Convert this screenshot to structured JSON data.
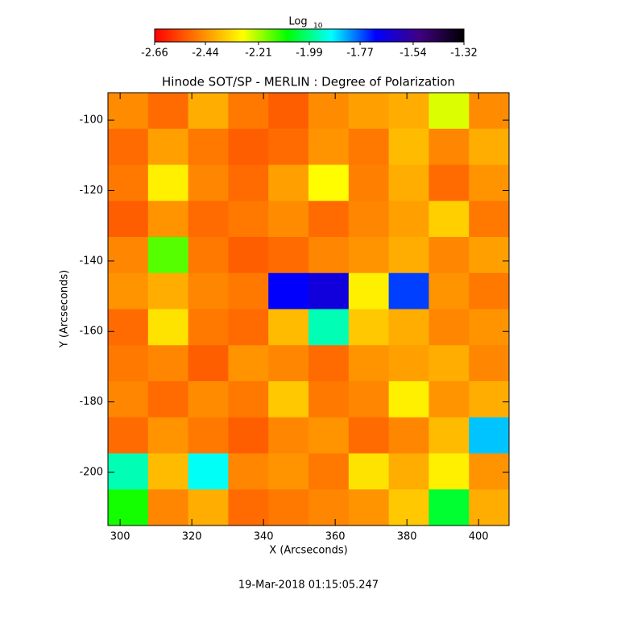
{
  "chart_data": {
    "type": "heatmap",
    "title": "Hinode SOT/SP - MERLIN : Degree of Polarization",
    "x_label": "X (Arcseconds)",
    "y_label": "Y (Arcseconds)",
    "footer": "19-Mar-2018 01:15:05.247",
    "colorbar_label": "Log",
    "colorbar_label_subscript": "10",
    "colormap": [
      "#ff0000",
      "#ff8000",
      "#ffff00",
      "#00ff00",
      "#00ffff",
      "#0000ff",
      "#400080",
      "#000000"
    ],
    "clim": [
      -2.66,
      -1.32
    ],
    "cticks": [
      -2.66,
      -2.44,
      -2.21,
      -1.99,
      -1.77,
      -1.54,
      -1.32
    ],
    "xlim": [
      296.6,
      408.5
    ],
    "ylim": [
      -215.1,
      -92.2
    ],
    "xticks": [
      300,
      320,
      340,
      360,
      380,
      400
    ],
    "yticks": [
      -100,
      -120,
      -140,
      -160,
      -180,
      -200
    ],
    "z": [
      [
        -2.45,
        -2.5,
        -2.4,
        -2.48,
        -2.52,
        -2.45,
        -2.42,
        -2.4,
        -2.25,
        -2.45
      ],
      [
        -2.5,
        -2.42,
        -2.48,
        -2.52,
        -2.5,
        -2.44,
        -2.48,
        -2.38,
        -2.46,
        -2.4
      ],
      [
        -2.48,
        -2.3,
        -2.46,
        -2.5,
        -2.42,
        -2.28,
        -2.47,
        -2.4,
        -2.5,
        -2.44
      ],
      [
        -2.52,
        -2.44,
        -2.5,
        -2.48,
        -2.45,
        -2.5,
        -2.46,
        -2.42,
        -2.35,
        -2.48
      ],
      [
        -2.46,
        -2.15,
        -2.48,
        -2.52,
        -2.5,
        -2.46,
        -2.44,
        -2.4,
        -2.46,
        -2.42
      ],
      [
        -2.44,
        -2.4,
        -2.46,
        -2.48,
        -1.7,
        -1.65,
        -2.3,
        -1.75,
        -2.44,
        -2.48
      ],
      [
        -2.5,
        -2.32,
        -2.48,
        -2.5,
        -2.38,
        -1.95,
        -2.36,
        -2.4,
        -2.46,
        -2.44
      ],
      [
        -2.48,
        -2.46,
        -2.52,
        -2.44,
        -2.46,
        -2.5,
        -2.44,
        -2.42,
        -2.4,
        -2.46
      ],
      [
        -2.46,
        -2.5,
        -2.45,
        -2.48,
        -2.36,
        -2.48,
        -2.46,
        -2.3,
        -2.44,
        -2.4
      ],
      [
        -2.5,
        -2.44,
        -2.48,
        -2.52,
        -2.46,
        -2.44,
        -2.5,
        -2.46,
        -2.38,
        -1.85
      ],
      [
        -1.95,
        -2.38,
        -1.9,
        -2.46,
        -2.44,
        -2.48,
        -2.32,
        -2.4,
        -2.3,
        -2.44
      ],
      [
        -2.1,
        -2.46,
        -2.4,
        -2.5,
        -2.48,
        -2.46,
        -2.44,
        -2.36,
        -2.05,
        -2.4
      ]
    ]
  }
}
